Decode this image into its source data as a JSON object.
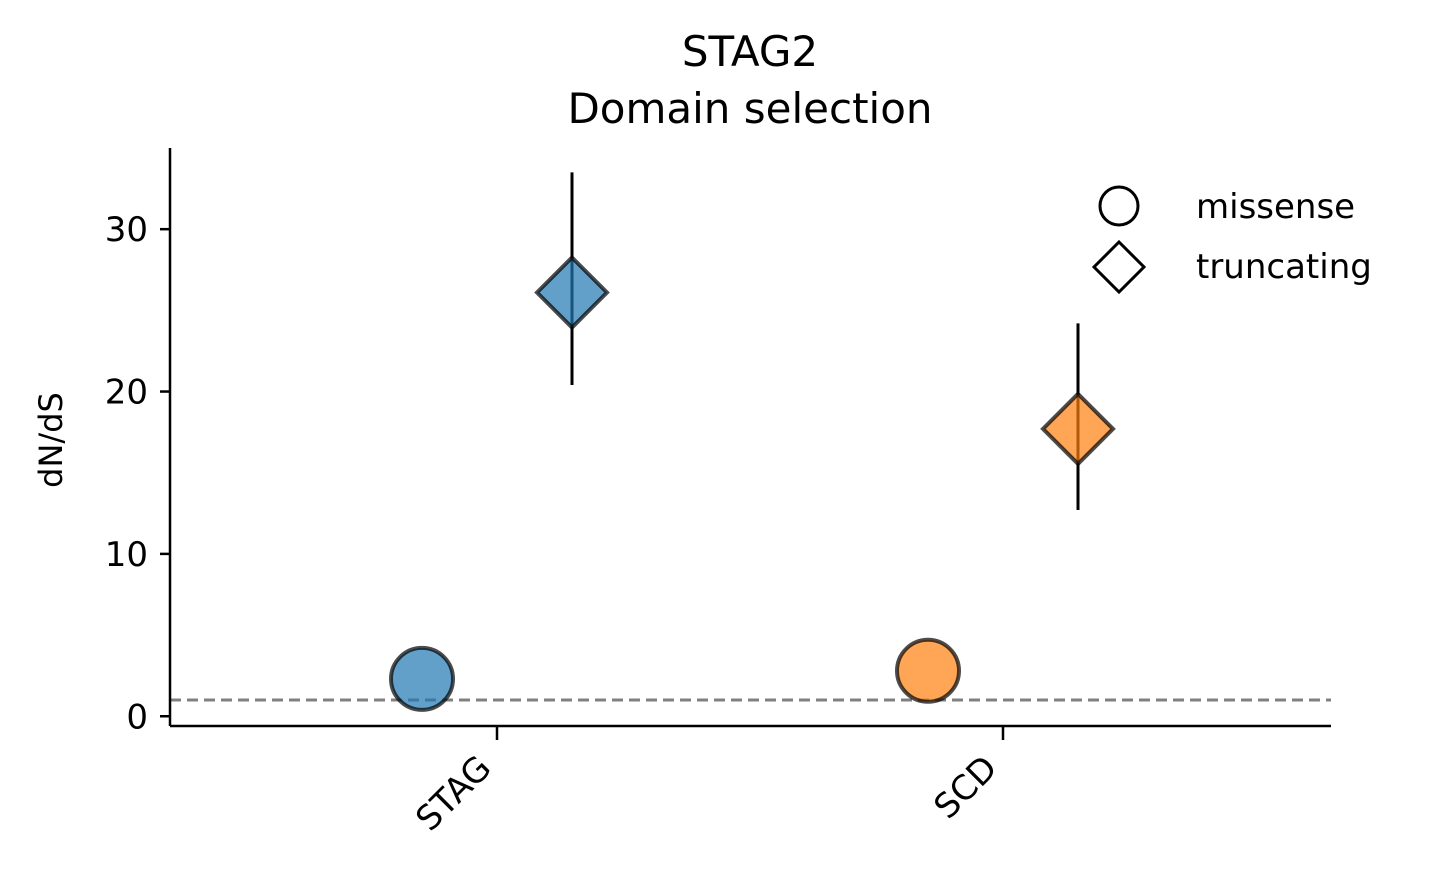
{
  "chart_data": {
    "type": "scatter",
    "title": "STAG2",
    "subtitle": "Domain selection",
    "xlabel": "",
    "ylabel": "dN/dS",
    "categories": [
      "STAG",
      "SCD"
    ],
    "ylim": [
      -0.6,
      35
    ],
    "yticks": [
      0,
      10,
      20,
      30
    ],
    "reference_line": {
      "y": 1,
      "style": "dashed",
      "color": "#808080"
    },
    "series": [
      {
        "name": "missense",
        "marker": "circle",
        "points": [
          {
            "category": "STAG",
            "value": 2.3,
            "lower": null,
            "upper": null,
            "color": "#1f77b4"
          },
          {
            "category": "SCD",
            "value": 2.8,
            "lower": null,
            "upper": null,
            "color": "#ff7f0e"
          }
        ]
      },
      {
        "name": "truncating",
        "marker": "diamond",
        "points": [
          {
            "category": "STAG",
            "value": 26.1,
            "lower": 20.4,
            "upper": 33.5,
            "color": "#1f77b4"
          },
          {
            "category": "SCD",
            "value": 17.7,
            "lower": 12.7,
            "upper": 24.2,
            "color": "#ff7f0e"
          }
        ]
      }
    ],
    "legend": {
      "position": "top-right",
      "entries": [
        {
          "label": "missense",
          "marker": "circle"
        },
        {
          "label": "truncating",
          "marker": "diamond"
        }
      ]
    }
  }
}
